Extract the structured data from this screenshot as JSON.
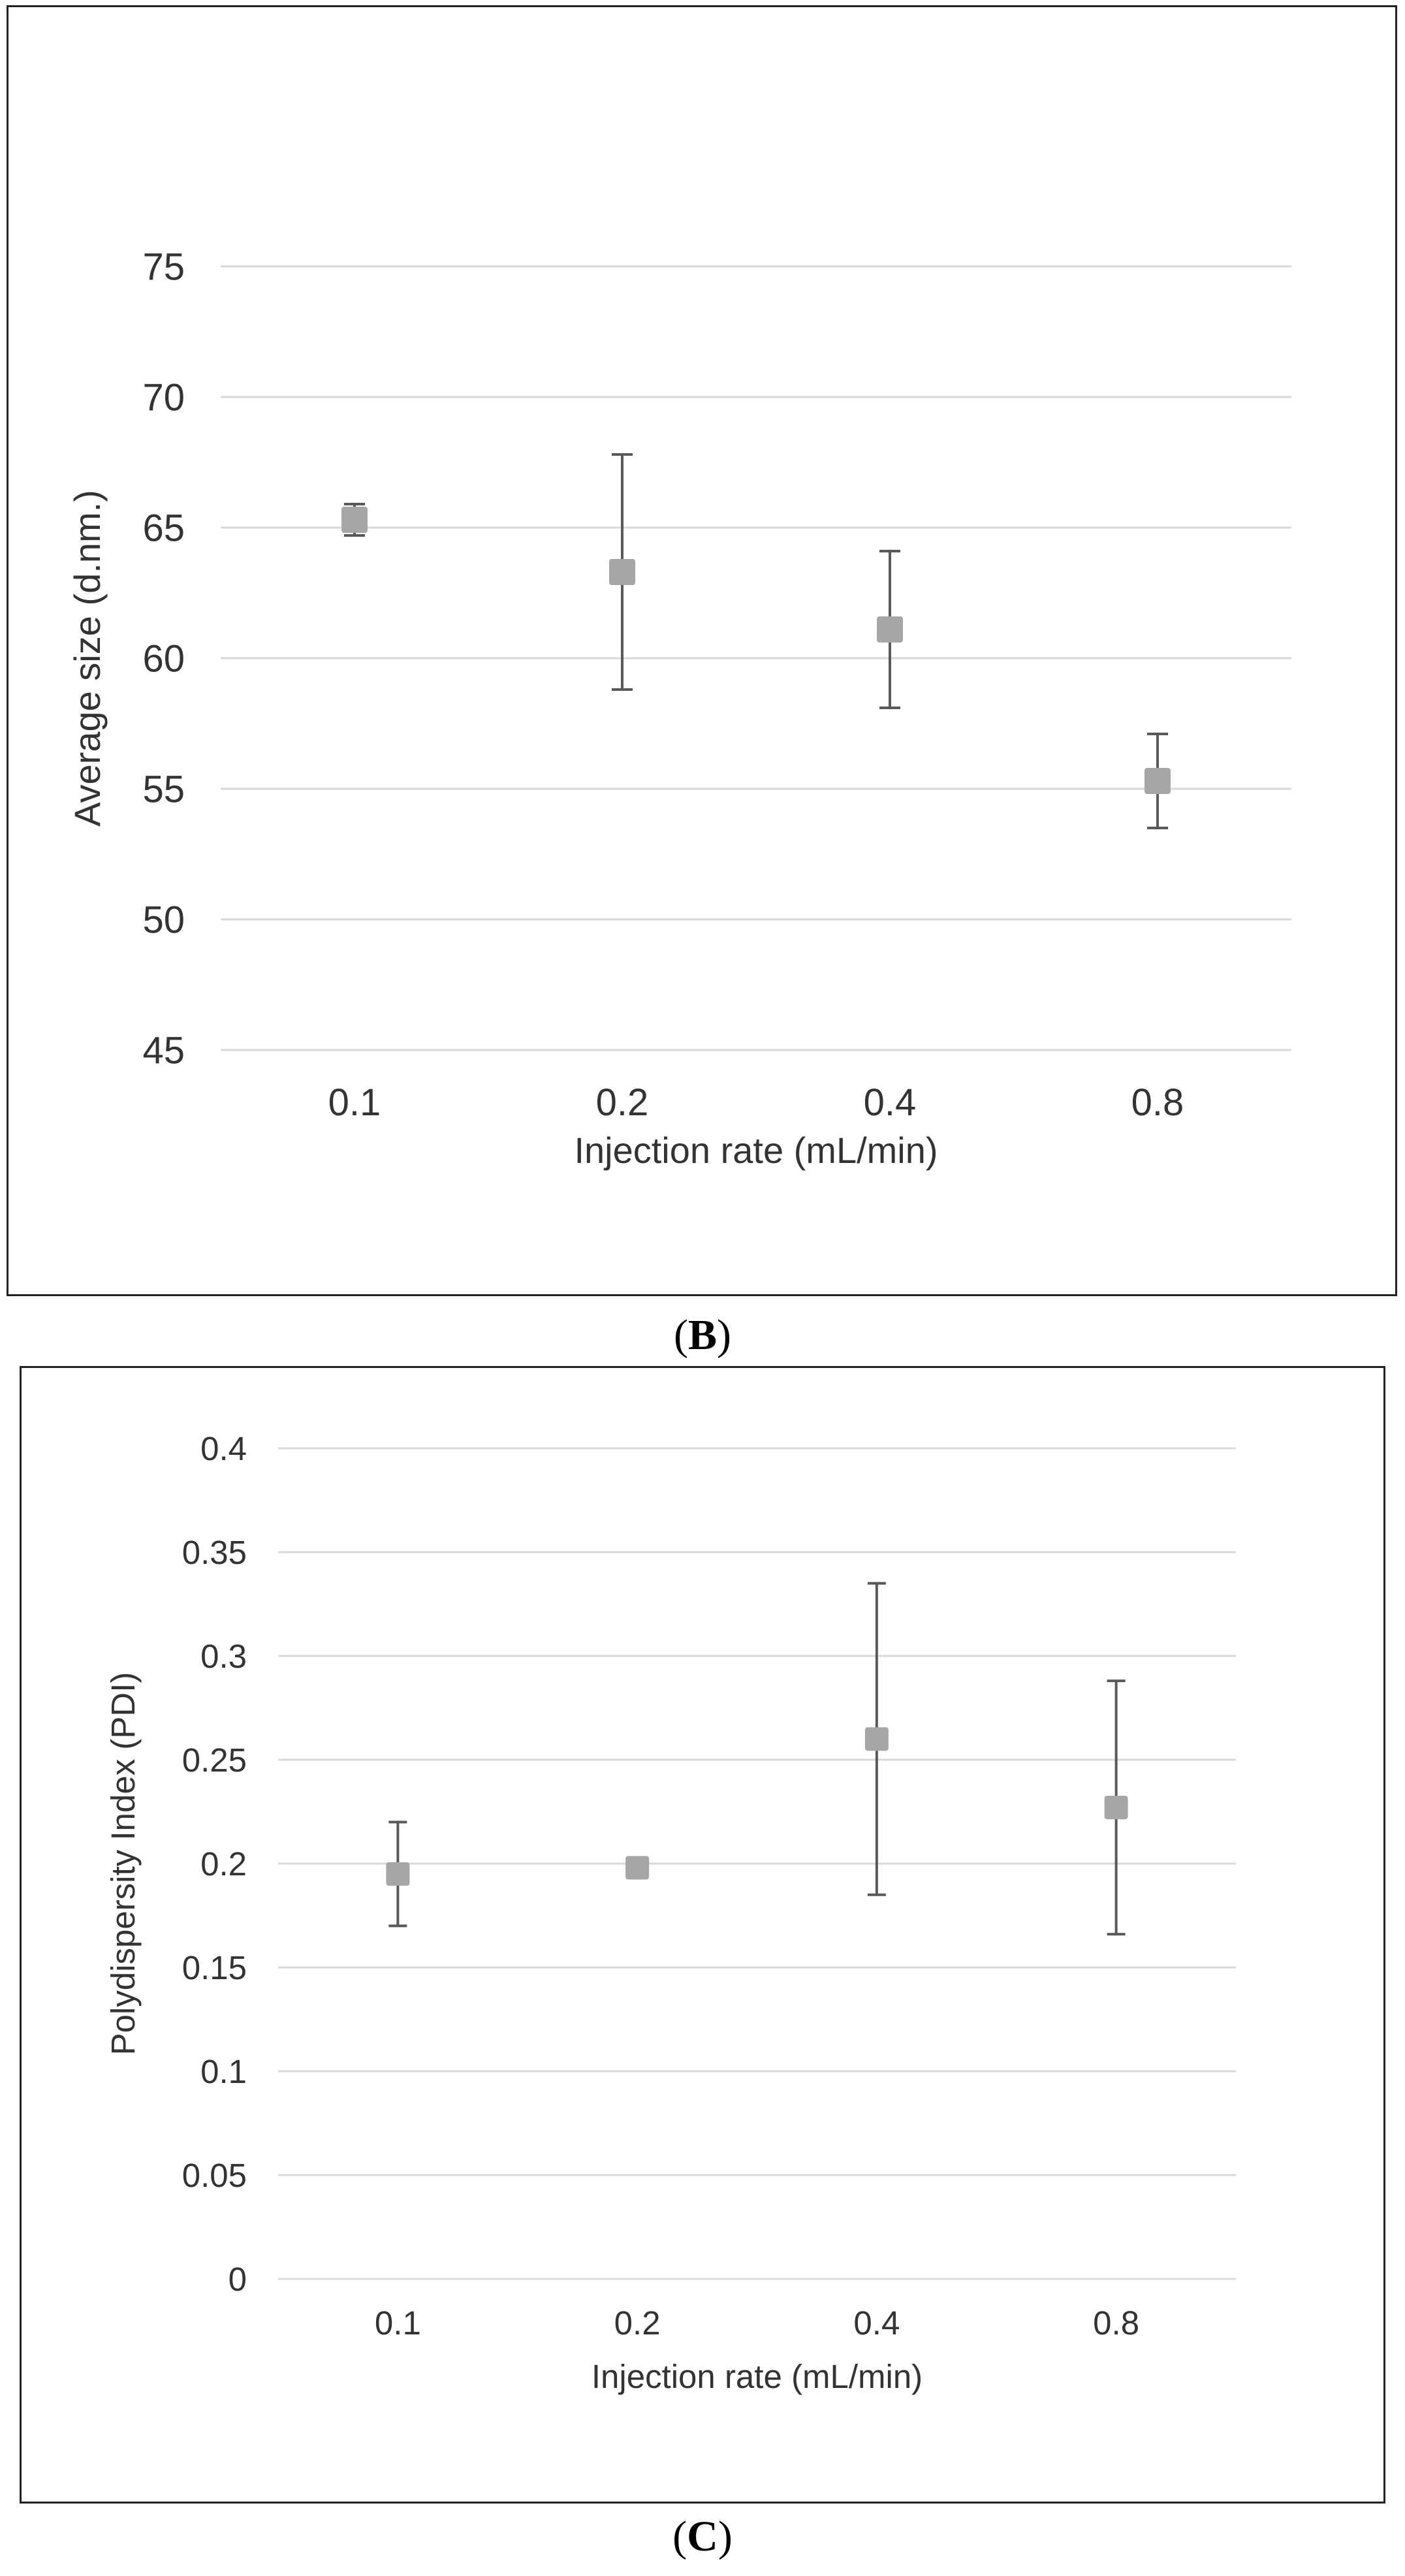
{
  "chart_data": [
    {
      "type": "scatter",
      "panel_label": "B",
      "title": "",
      "xlabel": "Injection rate (mL/min)",
      "ylabel": "Average size (d.nm.)",
      "categories": [
        "0.1",
        "0.2",
        "0.4",
        "0.8"
      ],
      "values": [
        65.3,
        63.3,
        61.1,
        55.3
      ],
      "error_low": [
        64.7,
        58.8,
        58.1,
        53.5
      ],
      "error_high": [
        65.9,
        67.8,
        64.1,
        57.1
      ],
      "ylim": [
        45,
        75
      ],
      "yticks": [
        45,
        50,
        55,
        60,
        65,
        70,
        75
      ],
      "ytick_labels": [
        "45",
        "50",
        "55",
        "60",
        "65",
        "70",
        "75"
      ],
      "grid": true,
      "legend": "none"
    },
    {
      "type": "scatter",
      "panel_label": "C",
      "title": "",
      "xlabel": "Injection rate (mL/min)",
      "ylabel": "Polydispersity Index (PDI)",
      "categories": [
        "0.1",
        "0.2",
        "0.4",
        "0.8"
      ],
      "values": [
        0.195,
        0.198,
        0.26,
        0.227
      ],
      "error_low": [
        0.17,
        0.198,
        0.185,
        0.166
      ],
      "error_high": [
        0.22,
        0.198,
        0.335,
        0.288
      ],
      "ylim": [
        0,
        0.4
      ],
      "yticks": [
        0,
        0.05,
        0.1,
        0.15,
        0.2,
        0.25,
        0.3,
        0.35,
        0.4
      ],
      "ytick_labels": [
        "0",
        "0.05",
        "0.1",
        "0.15",
        "0.2",
        "0.25",
        "0.3",
        "0.35",
        "0.4"
      ],
      "grid": true,
      "legend": "none"
    }
  ],
  "style": {
    "marker_color": "#a6a6a6",
    "errorbar_color": "#595959",
    "grid_color": "#d9d9d9"
  }
}
